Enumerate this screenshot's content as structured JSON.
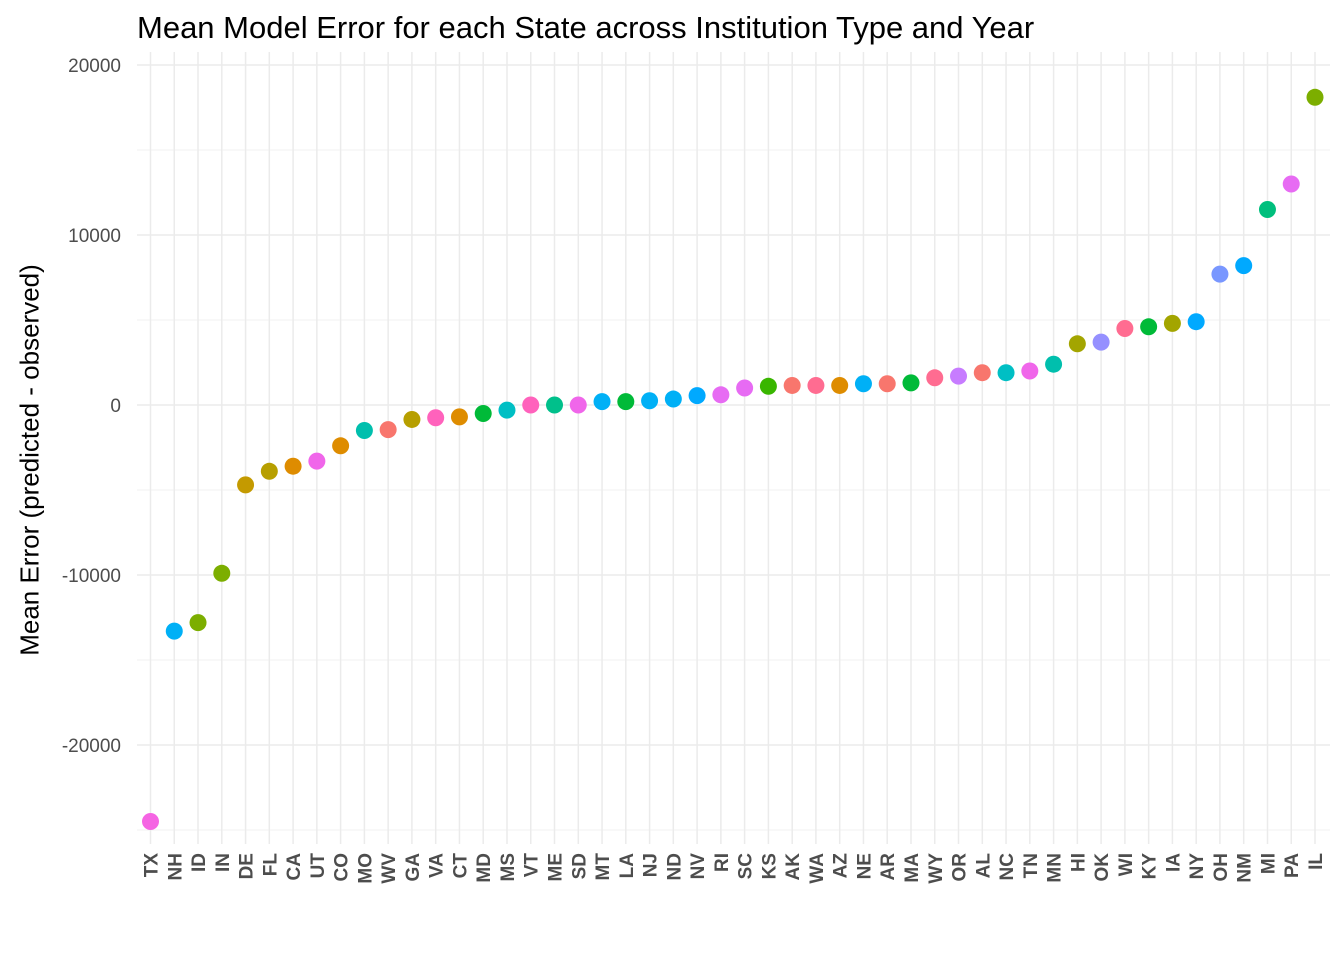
{
  "chart_data": {
    "type": "scatter",
    "title": "Mean Model Error for each State across Institution Type and Year",
    "xlabel": "",
    "ylabel": "Mean Error (predicted - observed)",
    "ylim": [
      -26000,
      20000
    ],
    "y_ticks": [
      -20000,
      -10000,
      0,
      10000,
      20000
    ],
    "y_tick_labels": [
      "-20000",
      "-10000",
      "0",
      "10000",
      "20000"
    ],
    "grid": true,
    "legend": "none",
    "points": [
      {
        "x": "TX",
        "y": -24500,
        "color": "#F564E3"
      },
      {
        "x": "NH",
        "y": -13300,
        "color": "#00B0F6"
      },
      {
        "x": "ID",
        "y": -12800,
        "color": "#7CAE00"
      },
      {
        "x": "IN",
        "y": -9900,
        "color": "#7CAE00"
      },
      {
        "x": "DE",
        "y": -4700,
        "color": "#C49A00"
      },
      {
        "x": "FL",
        "y": -3900,
        "color": "#B79F00"
      },
      {
        "x": "CA",
        "y": -3600,
        "color": "#DE8C00"
      },
      {
        "x": "UT",
        "y": -3300,
        "color": "#F066EA"
      },
      {
        "x": "CO",
        "y": -2400,
        "color": "#DE8C00"
      },
      {
        "x": "MO",
        "y": -1500,
        "color": "#00BFAD"
      },
      {
        "x": "WV",
        "y": -1450,
        "color": "#F8766D"
      },
      {
        "x": "GA",
        "y": -850,
        "color": "#B79F00"
      },
      {
        "x": "VA",
        "y": -750,
        "color": "#FF62BC"
      },
      {
        "x": "CT",
        "y": -700,
        "color": "#DE8C00"
      },
      {
        "x": "MD",
        "y": -500,
        "color": "#00BA38"
      },
      {
        "x": "MS",
        "y": -300,
        "color": "#00BFC4"
      },
      {
        "x": "VT",
        "y": 0,
        "color": "#FF62BC"
      },
      {
        "x": "ME",
        "y": 0,
        "color": "#00C08B"
      },
      {
        "x": "SD",
        "y": 0,
        "color": "#F066EA"
      },
      {
        "x": "MT",
        "y": 200,
        "color": "#00B0F6"
      },
      {
        "x": "LA",
        "y": 200,
        "color": "#00BA38"
      },
      {
        "x": "NJ",
        "y": 250,
        "color": "#00B0F6"
      },
      {
        "x": "ND",
        "y": 350,
        "color": "#00B0F6"
      },
      {
        "x": "NV",
        "y": 550,
        "color": "#00A9FF"
      },
      {
        "x": "RI",
        "y": 600,
        "color": "#E76BF3"
      },
      {
        "x": "SC",
        "y": 1000,
        "color": "#E76BF3"
      },
      {
        "x": "KS",
        "y": 1100,
        "color": "#39B600"
      },
      {
        "x": "AK",
        "y": 1150,
        "color": "#F8766D"
      },
      {
        "x": "WA",
        "y": 1150,
        "color": "#FF6C91"
      },
      {
        "x": "AZ",
        "y": 1150,
        "color": "#DE8C00"
      },
      {
        "x": "NE",
        "y": 1250,
        "color": "#00B0F6"
      },
      {
        "x": "AR",
        "y": 1250,
        "color": "#F8766D"
      },
      {
        "x": "MA",
        "y": 1300,
        "color": "#00BA38"
      },
      {
        "x": "WY",
        "y": 1600,
        "color": "#FF6C91"
      },
      {
        "x": "OR",
        "y": 1700,
        "color": "#C77CFF"
      },
      {
        "x": "AL",
        "y": 1900,
        "color": "#F8766D"
      },
      {
        "x": "NC",
        "y": 1900,
        "color": "#00BFC4"
      },
      {
        "x": "TN",
        "y": 2000,
        "color": "#F066EA"
      },
      {
        "x": "MN",
        "y": 2400,
        "color": "#00BFAD"
      },
      {
        "x": "HI",
        "y": 3600,
        "color": "#A3A500"
      },
      {
        "x": "OK",
        "y": 3700,
        "color": "#9590FF"
      },
      {
        "x": "WI",
        "y": 4500,
        "color": "#FF6C91"
      },
      {
        "x": "KY",
        "y": 4600,
        "color": "#00BA38"
      },
      {
        "x": "IA",
        "y": 4800,
        "color": "#A3A500"
      },
      {
        "x": "NY",
        "y": 4900,
        "color": "#00A9FF"
      },
      {
        "x": "OH",
        "y": 7700,
        "color": "#7997FF"
      },
      {
        "x": "NM",
        "y": 8200,
        "color": "#00A9FF"
      },
      {
        "x": "MI",
        "y": 11500,
        "color": "#00BF7D"
      },
      {
        "x": "PA",
        "y": 13000,
        "color": "#E76BF3"
      },
      {
        "x": "IL",
        "y": 18100,
        "color": "#7CAE00"
      }
    ]
  }
}
